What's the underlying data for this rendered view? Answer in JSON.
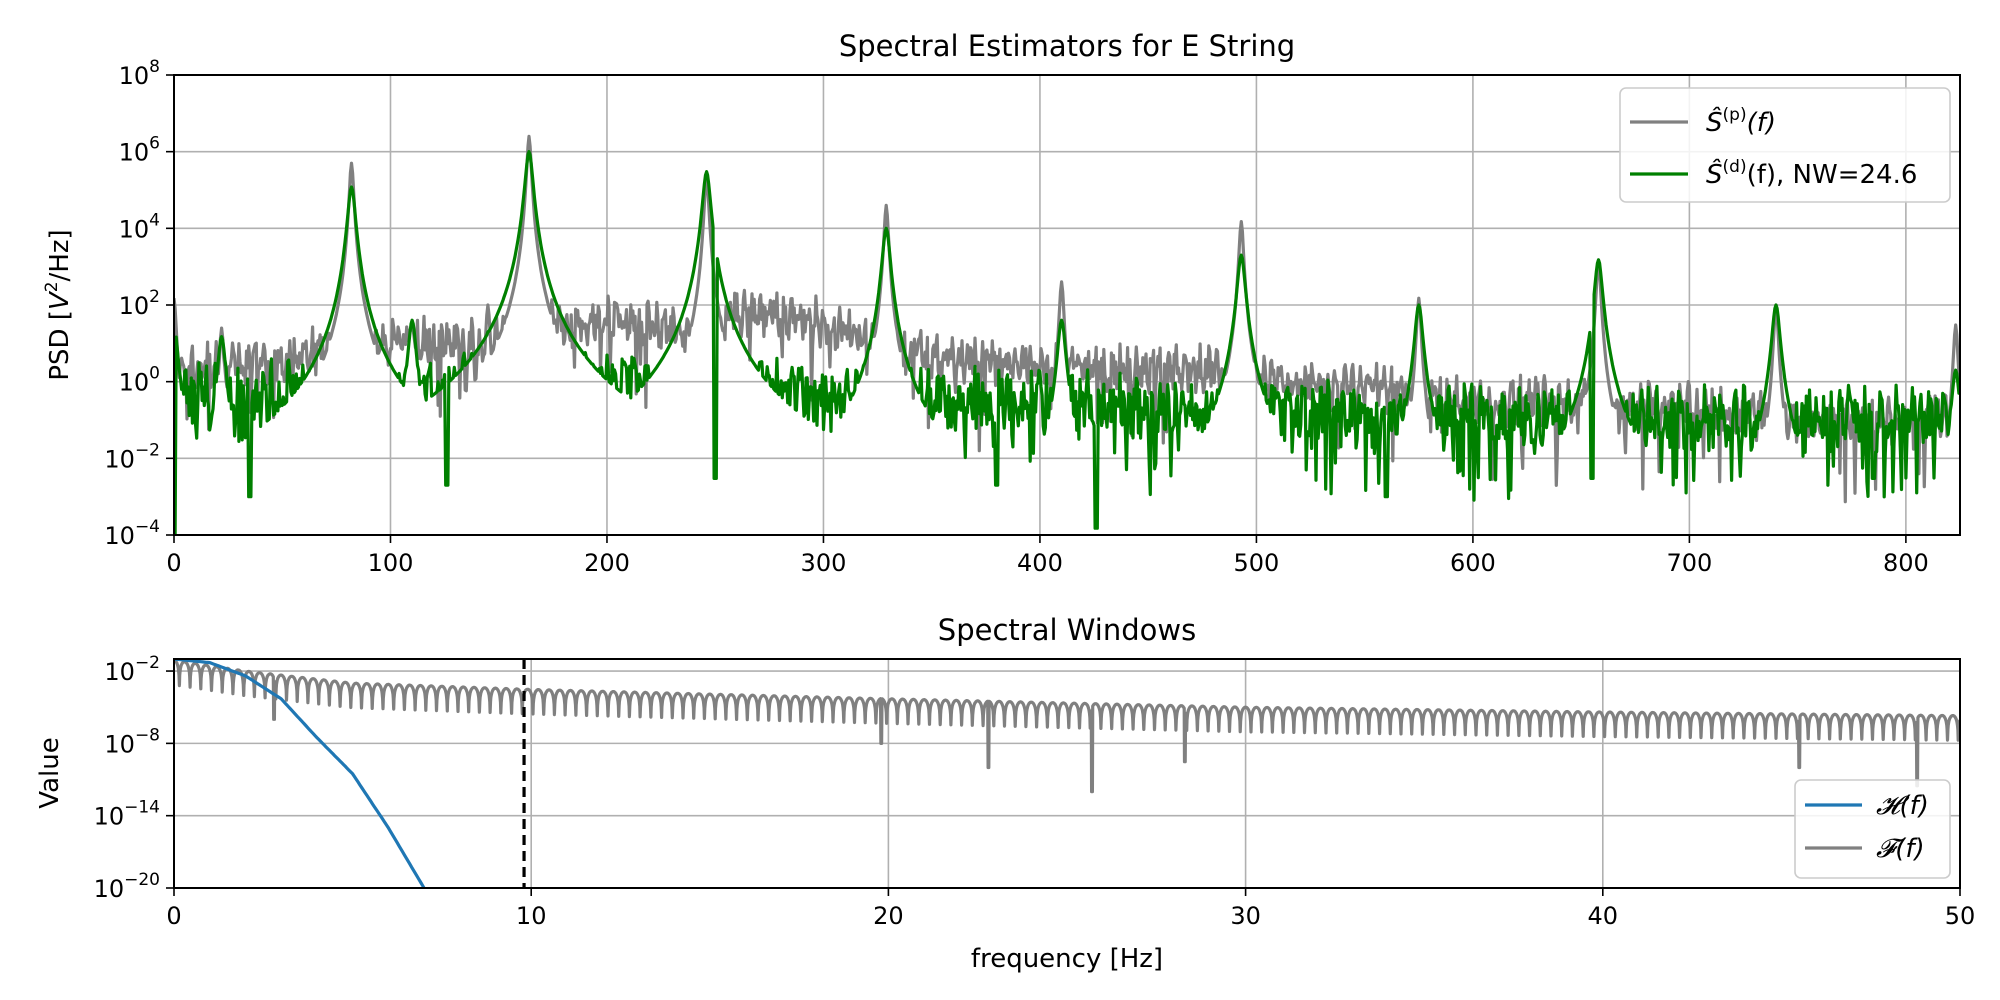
{
  "chart_data": [
    {
      "type": "line",
      "title": "Spectral Estimators for E String",
      "xlabel": "",
      "ylabel": "PSD [V²/Hz]",
      "ylabel_main": "PSD [",
      "ylabel_base": "V",
      "ylabel_exp": "2",
      "ylabel_tail": "/Hz]",
      "xlim": [
        0,
        825
      ],
      "ylim": [
        0.0001,
        100000000
      ],
      "y_scale": "log",
      "grid": true,
      "legend_placement": "top-right",
      "x_ticks": [
        "0",
        "100",
        "200",
        "300",
        "400",
        "500",
        "600",
        "700",
        "800"
      ],
      "x_tick_values": [
        0,
        100,
        200,
        300,
        400,
        500,
        600,
        700,
        800
      ],
      "y_tick_exponents": [
        "8",
        "6",
        "4",
        "2",
        "0",
        "−2",
        "−4"
      ],
      "y_tick_base": "10",
      "y_tick_values": [
        100000000,
        1000000,
        10000,
        100,
        1,
        0.01,
        0.0001
      ],
      "series": [
        {
          "name": "Ŝ(p)(f)",
          "legend_label": {
            "symbol": "Ŝ",
            "superscript": "(p)",
            "suffix": "(f)"
          },
          "color": "#808080",
          "noise_floor": [
            [
              0,
              2
            ],
            [
              35,
              3
            ],
            [
              80,
              8
            ],
            [
              110,
              12
            ],
            [
              140,
              10
            ],
            [
              175,
              30
            ],
            [
              205,
              40
            ],
            [
              235,
              20
            ],
            [
              260,
              60
            ],
            [
              290,
              50
            ],
            [
              320,
              15
            ],
            [
              350,
              5
            ],
            [
              400,
              3
            ],
            [
              440,
              2
            ],
            [
              480,
              2
            ],
            [
              520,
              0.8
            ],
            [
              560,
              0.6
            ],
            [
              600,
              0.3
            ],
            [
              650,
              0.3
            ],
            [
              700,
              0.2
            ],
            [
              750,
              0.1
            ],
            [
              800,
              0.1
            ],
            [
              825,
              0.2
            ]
          ],
          "peaks": [
            [
              0,
              150
            ],
            [
              22,
              25
            ],
            [
              82,
              500000
            ],
            [
              110,
              40
            ],
            [
              145,
              100
            ],
            [
              164,
              2500000
            ],
            [
              246,
              250000
            ],
            [
              329,
              40000
            ],
            [
              410,
              400
            ],
            [
              493,
              15000
            ],
            [
              575,
              150
            ],
            [
              658,
              1500
            ],
            [
              740,
              100
            ],
            [
              823,
              30
            ]
          ]
        },
        {
          "name": "Ŝ(d)(f), NW=24.6",
          "legend_label": {
            "symbol": "Ŝ",
            "superscript": "(d)",
            "suffix": "(f), NW=24.6"
          },
          "color": "#008000",
          "noise_floor": [
            [
              0,
              0.5
            ],
            [
              80,
              0.5
            ],
            [
              200,
              1
            ],
            [
              300,
              0.5
            ],
            [
              400,
              0.3
            ],
            [
              500,
              0.2
            ],
            [
              600,
              0.1
            ],
            [
              700,
              0.1
            ],
            [
              825,
              0.1
            ]
          ],
          "peaks": [
            [
              0,
              30
            ],
            [
              22,
              15
            ],
            [
              82,
              120000
            ],
            [
              110,
              40
            ],
            [
              145,
              20
            ],
            [
              164,
              1000000
            ],
            [
              246,
              300000
            ],
            [
              329,
              10000
            ],
            [
              410,
              40
            ],
            [
              493,
              2000
            ],
            [
              575,
              100
            ],
            [
              658,
              1500
            ],
            [
              740,
              100
            ],
            [
              823,
              2
            ]
          ],
          "dips": [
            [
              0,
              0.0001
            ],
            [
              35,
              0.001
            ],
            [
              126,
              0.002
            ],
            [
              250,
              0.003
            ],
            [
              380,
              0.002
            ],
            [
              426,
              0.00015
            ],
            [
              560,
              0.001
            ],
            [
              655,
              0.003
            ],
            [
              785,
              0.003
            ]
          ]
        }
      ]
    },
    {
      "type": "line",
      "title": "Spectral Windows",
      "xlabel": "frequency [Hz]",
      "ylabel": "Value",
      "xlim": [
        0,
        50
      ],
      "ylim": [
        1e-20,
        0.1
      ],
      "y_scale": "log",
      "grid": true,
      "legend_placement": "bottom-right",
      "x_ticks": [
        "0",
        "10",
        "20",
        "30",
        "40",
        "50"
      ],
      "x_tick_values": [
        0,
        10,
        20,
        30,
        40,
        50
      ],
      "y_tick_exponents": [
        "−2",
        "−8",
        "−14",
        "−20"
      ],
      "y_tick_base": "10",
      "y_tick_values": [
        0.01,
        1e-08,
        1e-14,
        1e-20
      ],
      "vertical_line": {
        "x": 9.8,
        "style": "dashed",
        "color": "#000000"
      },
      "series": [
        {
          "name": "𝓗(f)",
          "legend_label": "𝓗(f)",
          "color": "#1f77b4",
          "points": [
            [
              0,
              0.1
            ],
            [
              1,
              0.05
            ],
            [
              2,
              0.004
            ],
            [
              3,
              5e-05
            ],
            [
              4,
              3e-08
            ],
            [
              5,
              3e-11
            ],
            [
              6,
              1e-15
            ],
            [
              7,
              1e-20
            ]
          ]
        },
        {
          "name": "𝓕(f)",
          "legend_label": "𝓕(f)",
          "color": "#808080",
          "envelope": [
            [
              0,
              0.08
            ],
            [
              2,
              0.01
            ],
            [
              5,
              0.001
            ],
            [
              10,
              0.0003
            ],
            [
              20,
              5e-05
            ],
            [
              30,
              1e-05
            ],
            [
              40,
              4e-06
            ],
            [
              50,
              2e-06
            ]
          ],
          "deep_nulls": [
            [
              2.8,
              1e-06
            ],
            [
              19.8,
              1e-08
            ],
            [
              22.8,
              1e-10
            ],
            [
              25.7,
              1e-12
            ],
            [
              28.3,
              3e-10
            ],
            [
              45.5,
              1e-10
            ],
            [
              48.8,
              3e-12
            ]
          ]
        }
      ]
    }
  ]
}
